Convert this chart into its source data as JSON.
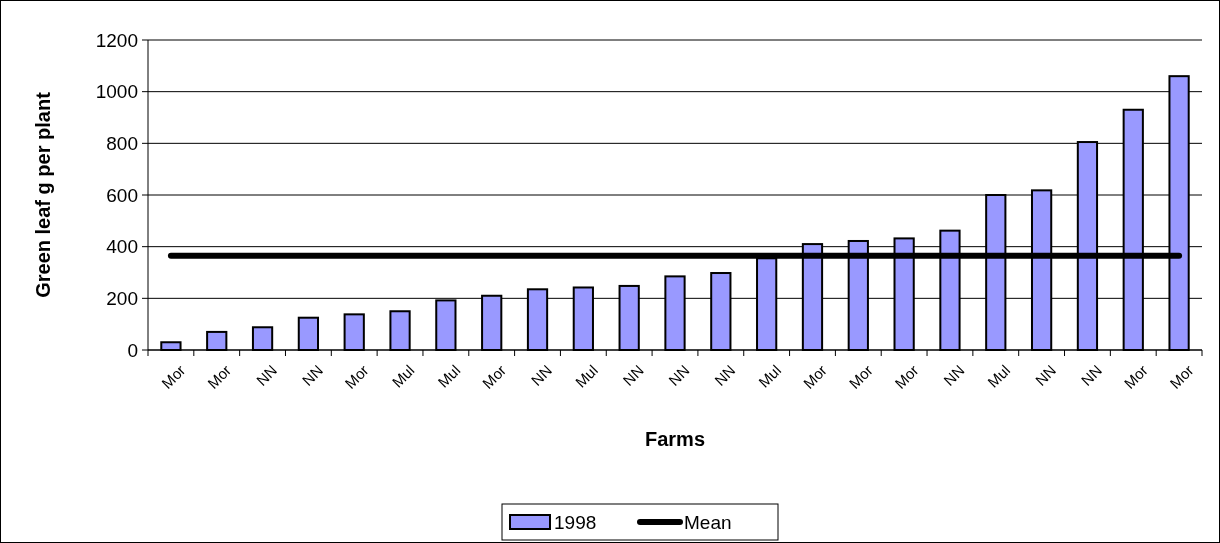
{
  "chart_data": {
    "type": "bar",
    "xlabel": "Farms",
    "ylabel": "Green leaf g per plant",
    "categories": [
      "Mor",
      "Mor",
      "NN",
      "NN",
      "Mor",
      "Mul",
      "Mul",
      "Mor",
      "NN",
      "Mul",
      "NN",
      "NN",
      "NN",
      "Mul",
      "Mor",
      "Mor",
      "Mor",
      "NN",
      "Mul",
      "NN",
      "NN",
      "Mor",
      "Mor"
    ],
    "series": [
      {
        "name": "1998",
        "color": "#9999ff",
        "values": [
          30,
          70,
          88,
          125,
          138,
          150,
          192,
          210,
          235,
          242,
          248,
          285,
          298,
          355,
          410,
          422,
          432,
          462,
          600,
          618,
          805,
          930,
          1060
        ]
      },
      {
        "name": "Mean",
        "type": "line",
        "color": "#000000",
        "values": [
          365,
          365,
          365,
          365,
          365,
          365,
          365,
          365,
          365,
          365,
          365,
          365,
          365,
          365,
          365,
          365,
          365,
          365,
          365,
          365,
          365,
          365,
          365
        ]
      }
    ],
    "ylim": [
      0,
      1200
    ],
    "yticks": [
      0,
      200,
      400,
      600,
      800,
      1000,
      1200
    ],
    "grid": "y",
    "legend": "bottom"
  }
}
